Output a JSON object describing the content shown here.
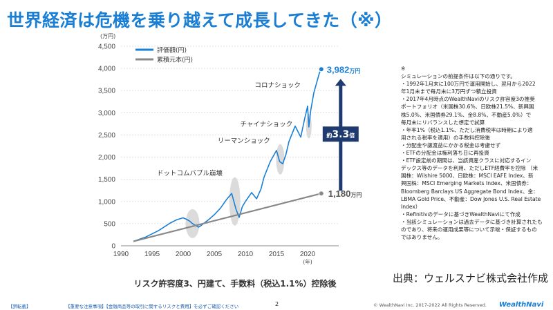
{
  "title": "世界経済は危機を乗り越えて成長してきた（※）",
  "chart_data": {
    "type": "line",
    "ylabel": "(万円)",
    "xlabel": "(年)",
    "xlim": [
      1990,
      2025
    ],
    "ylim": [
      0,
      4500
    ],
    "xticks": [
      "1990",
      "1995",
      "2000",
      "2005",
      "2010",
      "2015",
      "2020"
    ],
    "yticks": [
      "0",
      "500",
      "1,000",
      "1,500",
      "2,000",
      "2,500",
      "3,000",
      "3,500",
      "4,000",
      "4,500"
    ],
    "legend": [
      "評価額(円)",
      "累積元本(円)"
    ],
    "series": [
      {
        "name": "評価額(円)",
        "color": "#1a7fd4",
        "x": [
          1992.0,
          1993.0,
          1994.0,
          1995.0,
          1996.0,
          1997.0,
          1998.0,
          1999.0,
          2000.0,
          2000.5,
          2001.0,
          2001.5,
          2002.0,
          2002.5,
          2003.0,
          2004.0,
          2005.0,
          2006.0,
          2007.0,
          2007.8,
          2008.5,
          2009.0,
          2009.5,
          2010.0,
          2011.0,
          2011.8,
          2012.5,
          2013.0,
          2014.0,
          2015.0,
          2015.5,
          2016.0,
          2016.5,
          2017.0,
          2018.0,
          2018.9,
          2019.5,
          2020.0,
          2020.2,
          2020.5,
          2021.0,
          2021.5,
          2021.9,
          2022.2
        ],
        "values": [
          100,
          150,
          200,
          270,
          340,
          430,
          520,
          590,
          630,
          600,
          560,
          500,
          460,
          420,
          470,
          580,
          700,
          850,
          1050,
          1180,
          820,
          640,
          880,
          1000,
          1200,
          1060,
          1280,
          1550,
          1900,
          2150,
          1900,
          1850,
          2050,
          2350,
          2700,
          2450,
          2850,
          3150,
          2680,
          3050,
          3450,
          3700,
          3900,
          3982
        ]
      },
      {
        "name": "累積元本(円)",
        "color": "#888888",
        "x": [
          1992.0,
          2022.2
        ],
        "values": [
          100,
          1180
        ]
      }
    ],
    "annotations": {
      "final_value": "3,982",
      "final_unit": "万円",
      "principal_value": "1,180",
      "principal_unit": "万円",
      "multiplier_prefix": "約",
      "multiplier_value": "3.3",
      "multiplier_suffix": "倍",
      "events": [
        {
          "label": "ドットコムバブル崩壊",
          "x": 2001.5,
          "y": 500
        },
        {
          "label": "リーマンショック",
          "x": 2008.3,
          "y": 1000
        },
        {
          "label": "チャイナショック",
          "x": 2015.6,
          "y": 1950
        },
        {
          "label": "コロナショック",
          "x": 2020.2,
          "y": 2700
        }
      ]
    }
  },
  "notes": [
    "※",
    "シミュレーションの前提条件は以下の通りです。",
    "・1992年1月末に100万円で運用開始し、翌月から2022",
    "年1月末まで毎月末に3万円ずつ積立投資",
    "・2017年4月時点のWealthNaviのリスク許容度3の推奨",
    "ポートフォリオ（米国株30.6%、日欧株21.5%、新興国",
    "株5.0%、米国債券29.1%、金8.8%、不動産5.0%）で",
    "毎月末にリバランスした想定で試算",
    "・年率1%（税込1.1%、ただし消費税率は時期により適",
    "用される税率を適用）の手数料控除後",
    "・分配金や譲渡益にかかる税金は考慮せず",
    "・ETFの分配金は権利落ち日に再投資",
    "・ETF設定前の期間は、当該資産クラスに対応するイン",
    "デックス等のデータを利用、ただしETF経費率を控除 （米",
    "国株：Wilshire 5000、日欧株：MSCI EAFE Index、新",
    "興国株：MSCI Emerging Markets Index、米国債券：",
    "Bloomberg Barclays US Aggregate Bond Index、金：",
    "LBMA Gold Price、不動産：Dow Jones U.S. Real Estate",
    "Index）",
    "・Refinitivのデータに基づきWealthNaviにて作成",
    "・当該シミュレーションは過去データに基づき計算されたも",
    "のであり、将来の運用成果等について示唆・保証するもの",
    "ではありません。"
  ],
  "source": "出典：ウェルスナビ株式会社作成",
  "caption": "リスク許容度3、円建て、手数料（税込1.1%）控除後",
  "footer": {
    "label_left": "【禁転載】",
    "label_mid": "【重要な注意事項】【金融商品等の取引に関するリスクと費用】を必ずご確認ください",
    "page": "2",
    "copyright": "© WealthNavi Inc. 2017-2022 All Rights Reserved.",
    "logo": "WealthNavi"
  }
}
